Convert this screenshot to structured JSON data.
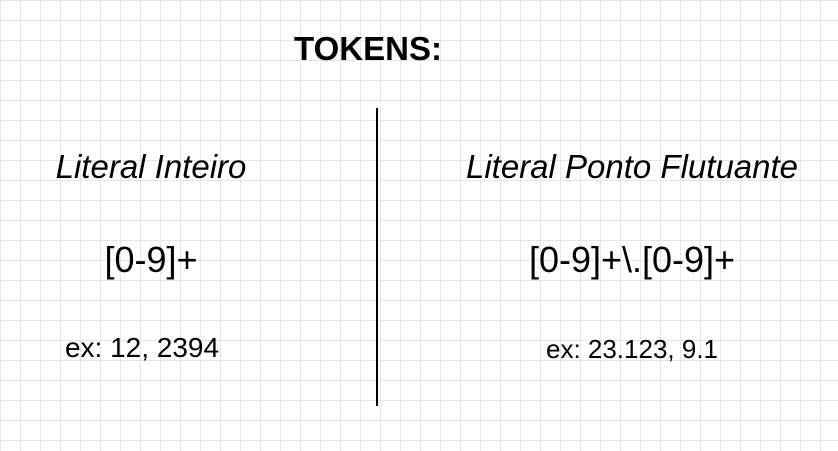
{
  "title": "TOKENS:",
  "columns": [
    {
      "heading": "Literal Inteiro",
      "regex": "[0-9]+",
      "example": "ex: 12, 2394"
    },
    {
      "heading": "Literal Ponto Flutuante",
      "regex": "[0-9]+\\.[0-9]+",
      "example": "ex: 23.123, 9.1"
    }
  ]
}
